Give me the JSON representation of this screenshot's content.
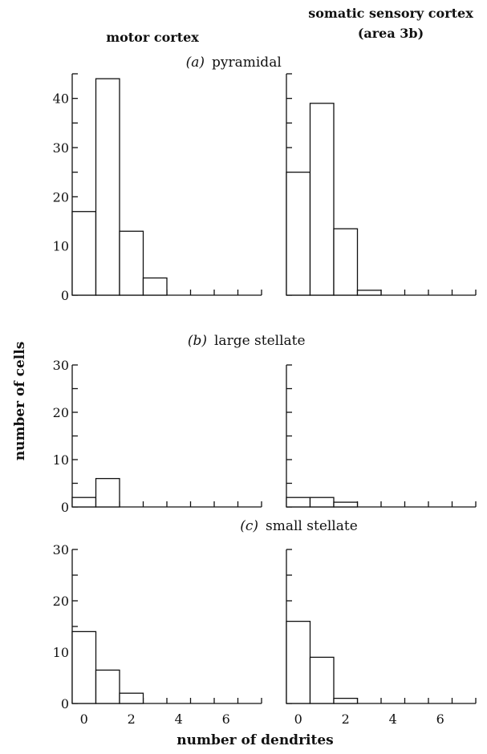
{
  "chart_data": {
    "type": "bar",
    "columns": [
      "motor cortex",
      "somatic sensory cortex\n(area 3b)"
    ],
    "xlabel": "number of dendrites",
    "ylabel": "number of cells",
    "x_categories": [
      0,
      1,
      2,
      3,
      4,
      5,
      6,
      7
    ],
    "x_tick_labels": [
      "0",
      "2",
      "4",
      "6"
    ],
    "x_tick_label_positions": [
      0,
      2,
      4,
      6
    ],
    "grid": false,
    "panels": [
      {
        "row_label": "(a)",
        "row_title": "pyramidal",
        "ylim": [
          0,
          45
        ],
        "y_ticks": [
          0,
          10,
          20,
          30,
          40
        ],
        "series": [
          {
            "name": "motor cortex",
            "values": [
              17,
              44,
              13,
              3.5,
              0,
              0,
              0,
              0
            ]
          },
          {
            "name": "somatic sensory cortex (area 3b)",
            "values": [
              25,
              39,
              13.5,
              1,
              0,
              0,
              0,
              0
            ]
          }
        ]
      },
      {
        "row_label": "(b)",
        "row_title": "large stellate",
        "ylim": [
          0,
          30
        ],
        "y_ticks": [
          0,
          10,
          20,
          30
        ],
        "series": [
          {
            "name": "motor cortex",
            "values": [
              2,
              6,
              0,
              0,
              0,
              0,
              0,
              0
            ]
          },
          {
            "name": "somatic sensory cortex (area 3b)",
            "values": [
              2,
              2,
              1,
              0,
              0,
              0,
              0,
              0
            ]
          }
        ]
      },
      {
        "row_label": "(c)",
        "row_title": "small stellate",
        "ylim": [
          0,
          30
        ],
        "y_ticks": [
          0,
          10,
          20,
          30
        ],
        "series": [
          {
            "name": "motor cortex",
            "values": [
              14,
              6.5,
              2,
              0,
              0,
              0,
              0,
              0
            ]
          },
          {
            "name": "somatic sensory cortex (area 3b)",
            "values": [
              16,
              9,
              1,
              0,
              0,
              0,
              0,
              0
            ]
          }
        ]
      }
    ]
  },
  "labels": {
    "col_left": "motor cortex",
    "col_right_line1": "somatic sensory cortex",
    "col_right_line2": "(area 3b)",
    "row_a_label": "(a)",
    "row_a_title": "pyramidal",
    "row_b_label": "(b)",
    "row_b_title": "large stellate",
    "row_c_label": "(c)",
    "row_c_title": "small stellate",
    "ylabel": "number of cells",
    "xlabel": "number of dendrites"
  }
}
